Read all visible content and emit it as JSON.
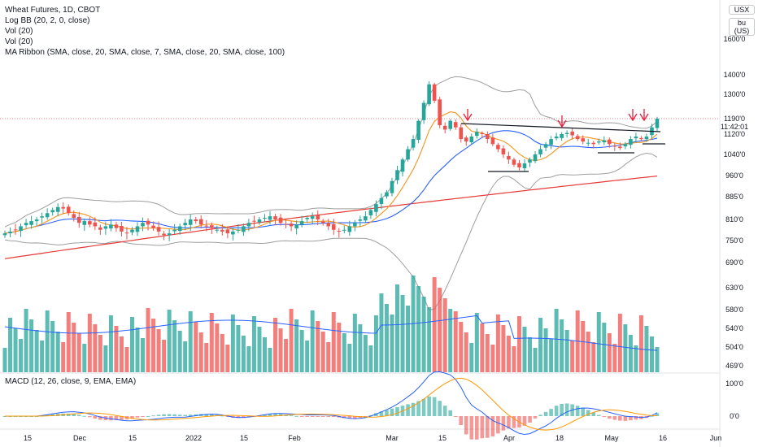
{
  "legend": {
    "title": "Wheat Futures, 1D, CBOT",
    "line1": "Log BB (20, 2, 0, close)",
    "line2": "Vol (20)",
    "line3": "Vol (20)",
    "line4": "MA Ribbon (SMA, close, 20, SMA, close, 7, SMA, close, 20, SMA, close, 100)",
    "macd": "MACD (12, 26, close, 9, EMA, EMA)"
  },
  "scale_buttons": {
    "currency": "USX",
    "unit": "bu (US)"
  },
  "last_price": {
    "price": "1190'0",
    "countdown": "11:42:01"
  },
  "colors": {
    "up": "#26a69a",
    "down": "#ef5350",
    "ma_fast": "#f7931a",
    "ma_mid": "#2962ff",
    "ma_slow": "#e53935",
    "bb": "#9e9e9e",
    "macd": "#2962ff",
    "signal": "#ff9800",
    "arrow": "#e91e3a",
    "trendline": "#131722"
  },
  "chart_data": {
    "type": "candlestick",
    "price_axis_ticks": [
      "1600'0",
      "1400'0",
      "1300'0",
      "1190'0",
      "1120'0",
      "1040'0",
      "960'0",
      "885'0",
      "810'0",
      "750'0",
      "690'0",
      "630'0",
      "580'0",
      "540'0",
      "504'0",
      "469'0"
    ],
    "time_axis_ticks": [
      "15",
      "Dec",
      "15",
      "2022",
      "15",
      "Feb",
      "Mar",
      "15",
      "Apr",
      "18",
      "May",
      "16",
      "Jun"
    ],
    "macd_axis_ticks": [
      "100'0",
      "0'0"
    ],
    "candles_close_approx": [
      770,
      775,
      780,
      790,
      800,
      805,
      810,
      820,
      830,
      840,
      850,
      845,
      830,
      815,
      800,
      805,
      795,
      790,
      780,
      790,
      795,
      785,
      775,
      770,
      780,
      790,
      800,
      795,
      785,
      775,
      765,
      770,
      780,
      790,
      800,
      810,
      805,
      795,
      790,
      785,
      780,
      775,
      770,
      775,
      780,
      790,
      800,
      805,
      810,
      815,
      820,
      810,
      800,
      795,
      790,
      795,
      805,
      815,
      820,
      810,
      800,
      790,
      780,
      775,
      780,
      790,
      800,
      810,
      820,
      840,
      860,
      880,
      900,
      940,
      980,
      1020,
      1060,
      1100,
      1180,
      1260,
      1350,
      1270,
      1160,
      1140,
      1180,
      1150,
      1100,
      1090,
      1110,
      1130,
      1120,
      1100,
      1080,
      1060,
      1040,
      1020,
      1000,
      990,
      1005,
      1020,
      1040,
      1060,
      1080,
      1100,
      1110,
      1120,
      1125,
      1115,
      1100,
      1090,
      1085,
      1080,
      1090,
      1095,
      1080,
      1070,
      1065,
      1080,
      1100,
      1110,
      1100,
      1110,
      1150,
      1190
    ]
  }
}
